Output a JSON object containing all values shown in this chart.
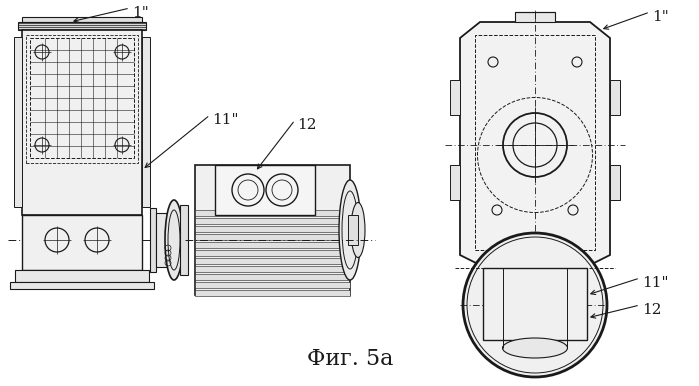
{
  "title": "Фиг. 5а",
  "bg_color": "#ffffff",
  "line_color": "#1a1a1a",
  "title_fontsize": 16,
  "label_fontsize": 11,
  "fig_width": 6.99,
  "fig_height": 3.86
}
